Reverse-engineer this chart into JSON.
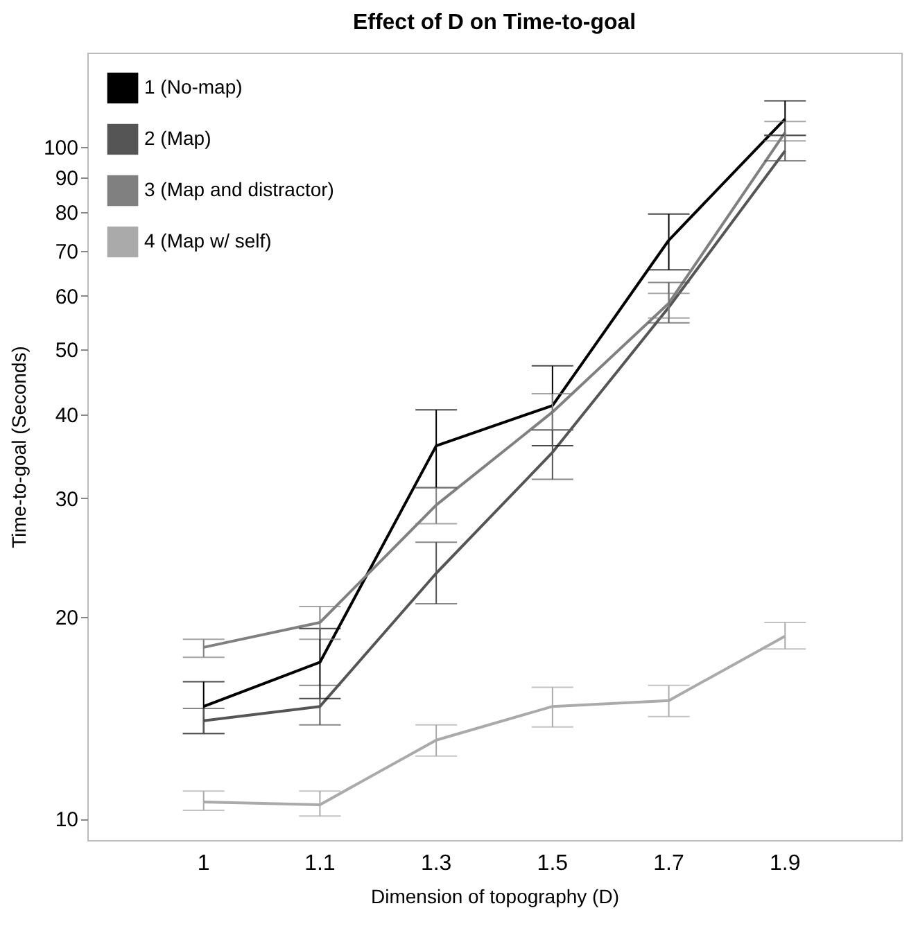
{
  "chart_data": {
    "type": "line",
    "title": "Effect of D on Time-to-goal",
    "xlabel": "Dimension of topography (D)",
    "ylabel": "Time-to-goal (Seconds)",
    "categories": [
      "1",
      "1.1",
      "1.3",
      "1.5",
      "1.7",
      "1.9"
    ],
    "series": [
      {
        "name": "1 (No-map)",
        "color": "#000000",
        "values": [
          14.7,
          17.1,
          35.9,
          41.2,
          72.6,
          110
        ],
        "errors": [
          [
            13.4,
            16.0
          ],
          [
            15.1,
            19.2
          ],
          [
            31.1,
            40.6
          ],
          [
            35.9,
            47.2
          ],
          [
            65.6,
            79.4
          ],
          [
            104,
            117
          ]
        ]
      },
      {
        "name": "2 (Map)",
        "color": "#555555",
        "values": [
          14.0,
          14.7,
          23.2,
          35.1,
          57.7,
          98.6
        ],
        "errors": [
          [
            13.4,
            14.6
          ],
          [
            13.8,
            15.8
          ],
          [
            20.9,
            25.8
          ],
          [
            32.0,
            37.9
          ],
          [
            54.7,
            62.8
          ],
          [
            95.3,
            104
          ]
        ]
      },
      {
        "name": "3 (Map and distractor)",
        "color": "#808080",
        "values": [
          18.0,
          19.6,
          29.3,
          40.3,
          58.5,
          105
        ],
        "errors": [
          [
            17.4,
            18.5
          ],
          [
            18.5,
            20.7
          ],
          [
            27.5,
            31.1
          ],
          [
            37.9,
            42.9
          ],
          [
            55.6,
            60.5
          ],
          [
            102,
            109
          ]
        ]
      },
      {
        "name": "4 (Map w/ self)",
        "color": "#aaaaaa",
        "values": [
          10.6,
          10.5,
          13.1,
          14.7,
          15.0,
          18.7
        ],
        "errors": [
          [
            10.3,
            11.0
          ],
          [
            10.1,
            11.0
          ],
          [
            12.4,
            13.8
          ],
          [
            13.7,
            15.7
          ],
          [
            14.2,
            15.8
          ],
          [
            17.9,
            19.6
          ]
        ]
      }
    ],
    "log": "y",
    "ylim": [
      9.3,
      138
    ],
    "yticks": [
      10,
      20,
      30,
      40,
      50,
      60,
      70,
      80,
      90,
      100
    ],
    "grid": false,
    "legend": "top left",
    "marker": "none",
    "line_style": "solid"
  }
}
